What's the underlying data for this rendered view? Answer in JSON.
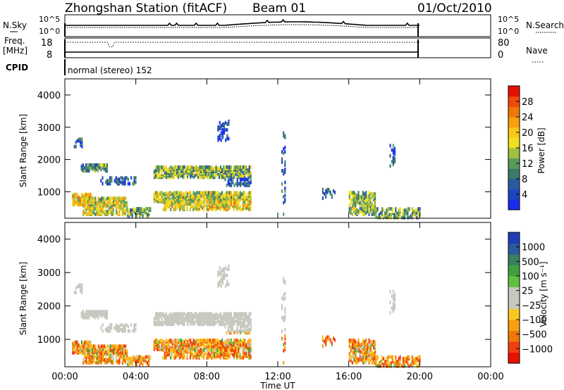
{
  "header": {
    "title": "Zhongshan Station (fitACF)",
    "beam": "Beam 01",
    "date": "01/Oct/2010"
  },
  "noise_panel": {
    "left_label": "N.Sky",
    "right_label": "N.Search",
    "left_ticks": [
      "10^5",
      "10^0"
    ],
    "right_ticks": [
      "10^5",
      "10^0"
    ]
  },
  "freq_panel": {
    "left_label_1": "Freq.",
    "left_label_2": "[MHz]",
    "right_label": "Nave",
    "left_ticks": [
      "18",
      "8"
    ],
    "right_ticks": [
      "80",
      "0"
    ]
  },
  "cpid": {
    "label": "CPID",
    "mode_text": "normal (stereo) 152"
  },
  "chart_data": [
    {
      "type": "heatmap",
      "name": "power",
      "ylabel": "Slant Range [km]",
      "xlabel": "",
      "yticks": [
        "1000",
        "2000",
        "3000",
        "4000"
      ],
      "ylim": [
        180,
        4500
      ],
      "xlim_hours": [
        0,
        24
      ],
      "colorbar": {
        "label": "Power [dB]",
        "ticks": [
          "4",
          "8",
          "12",
          "16",
          "20",
          "24",
          "28"
        ],
        "range": [
          0,
          32
        ],
        "colors": [
          "#1a2cf0",
          "#1e44c0",
          "#2a5a9e",
          "#3a7a6a",
          "#5a9a5a",
          "#a0c040",
          "#f0e020",
          "#f8c818",
          "#f8a010",
          "#f07808",
          "#f04808",
          "#e81000"
        ]
      }
    },
    {
      "type": "heatmap",
      "name": "velocity",
      "ylabel": "Slant Range [km]",
      "xlabel": "Time UT",
      "yticks": [
        "1000",
        "2000",
        "3000",
        "4000"
      ],
      "ylim": [
        180,
        4500
      ],
      "xticks": [
        "00:00",
        "04:00",
        "08:00",
        "12:00",
        "16:00",
        "20:00",
        "00:00"
      ],
      "xlim_hours": [
        0,
        24
      ],
      "colorbar": {
        "label": "Velocity [m s⁻¹]",
        "ticks": [
          "1000",
          "500",
          "100",
          "25",
          "−25",
          "−100",
          "−500",
          "−1000"
        ],
        "colors": [
          "#1f3cb8",
          "#2a5aa0",
          "#3a8060",
          "#40a040",
          "#60c040",
          "#c8c8c0",
          "#c8c8c0",
          "#f8c820",
          "#f8a010",
          "#f07808",
          "#f04010",
          "#e81000"
        ]
      }
    }
  ]
}
